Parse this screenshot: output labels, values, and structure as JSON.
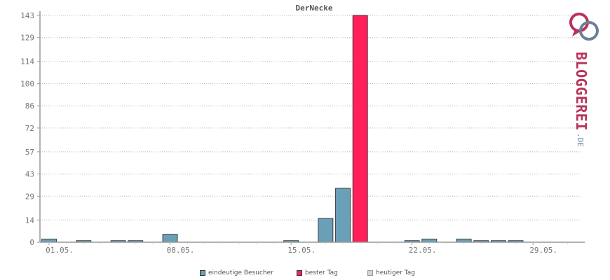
{
  "chart_data": {
    "type": "bar",
    "title": "DerNecke",
    "xlabel": "",
    "ylabel": "",
    "ylim": [
      0,
      143
    ],
    "yticks": [
      0,
      14,
      29,
      43,
      57,
      72,
      86,
      100,
      114,
      129,
      143
    ],
    "xtick_labels": [
      {
        "day": 1,
        "label": "01.05."
      },
      {
        "day": 8,
        "label": "08.05."
      },
      {
        "day": 15,
        "label": "15.05."
      },
      {
        "day": 22,
        "label": "22.05."
      },
      {
        "day": 29,
        "label": "29.05."
      }
    ],
    "grid": true,
    "days": [
      1,
      2,
      3,
      4,
      5,
      6,
      7,
      8,
      9,
      10,
      11,
      12,
      13,
      14,
      15,
      16,
      17,
      18,
      19,
      20,
      21,
      22,
      23,
      24,
      25,
      26,
      27,
      28,
      29,
      30,
      31
    ],
    "series": [
      {
        "name": "eindeutige Besucher",
        "color": "#6a9fb8",
        "values": [
          2,
          0,
          1,
          0,
          1,
          1,
          0,
          5,
          0,
          0,
          0,
          0,
          0,
          0,
          1,
          0,
          15,
          34,
          0,
          0,
          0,
          1,
          2,
          0,
          2,
          1,
          1,
          1,
          0,
          0,
          0
        ]
      },
      {
        "name": "bester Tag",
        "color": "#ff1f5a",
        "values": [
          0,
          0,
          0,
          0,
          0,
          0,
          0,
          0,
          0,
          0,
          0,
          0,
          0,
          0,
          0,
          0,
          0,
          0,
          143,
          0,
          0,
          0,
          0,
          0,
          0,
          0,
          0,
          0,
          0,
          0,
          0
        ]
      },
      {
        "name": "heutiger Tag",
        "color": "#d3d3d3",
        "values": [
          0,
          0,
          0,
          0,
          0,
          0,
          0,
          0,
          0,
          0,
          0,
          0,
          0,
          0,
          0,
          0,
          0,
          0,
          0,
          0,
          0,
          0,
          0,
          0,
          0,
          0,
          0,
          0,
          0,
          0,
          0
        ]
      }
    ],
    "legend_position": "bottom-center"
  },
  "logo": {
    "text_main": "BLOGGEREI",
    "text_suffix": ".DE",
    "color_main": "#b8335a",
    "color_secondary": "#6a7f9a"
  }
}
